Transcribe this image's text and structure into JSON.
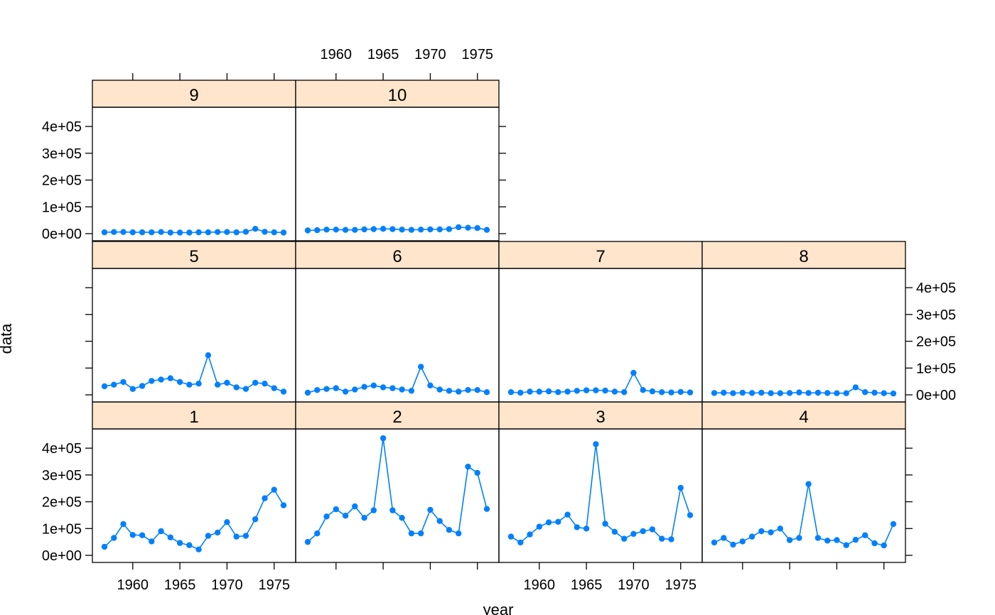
{
  "chart_data": {
    "type": "line",
    "layout": "trellis panels, 4 columns x 3 rows, bottom-to-top",
    "xlabel": "year",
    "ylabel": "data",
    "xlim": [
      1957,
      1976
    ],
    "ylim": [
      0,
      440000
    ],
    "xticks": [
      1960,
      1965,
      1970,
      1975
    ],
    "yticks": [
      0,
      100000,
      200000,
      300000,
      400000
    ],
    "ytick_labels": [
      "0e+00",
      "1e+05",
      "2e+05",
      "3e+05",
      "4e+05"
    ],
    "colors": {
      "series": "#0080ff",
      "strip": "#ffe5cc",
      "frame": "#000000"
    },
    "x": [
      1957,
      1958,
      1959,
      1960,
      1961,
      1962,
      1963,
      1964,
      1965,
      1966,
      1967,
      1968,
      1969,
      1970,
      1971,
      1972,
      1973,
      1974,
      1975,
      1976
    ],
    "panels": [
      {
        "label": "1",
        "values": [
          32000,
          65000,
          117000,
          76000,
          75000,
          52000,
          90000,
          67000,
          46000,
          38000,
          22000,
          73000,
          85000,
          124000,
          70000,
          73000,
          135000,
          213000,
          245000,
          187000
        ]
      },
      {
        "label": "2",
        "values": [
          50000,
          82000,
          145000,
          172000,
          148000,
          183000,
          140000,
          168000,
          437000,
          168000,
          140000,
          82000,
          82000,
          170000,
          128000,
          95000,
          82000,
          331000,
          308000,
          173000
        ]
      },
      {
        "label": "3",
        "values": [
          70000,
          48000,
          78000,
          107000,
          123000,
          125000,
          152000,
          105000,
          100000,
          415000,
          118000,
          88000,
          62000,
          80000,
          90000,
          97000,
          62000,
          60000,
          252000,
          150000
        ]
      },
      {
        "label": "4",
        "values": [
          48000,
          65000,
          40000,
          52000,
          70000,
          90000,
          86000,
          100000,
          57000,
          65000,
          266000,
          65000,
          55000,
          57000,
          38000,
          58000,
          75000,
          45000,
          37000,
          117000
        ]
      },
      {
        "label": "5",
        "values": [
          32000,
          38000,
          48000,
          22000,
          33000,
          52000,
          57000,
          62000,
          48000,
          38000,
          42000,
          148000,
          38000,
          45000,
          28000,
          22000,
          45000,
          42000,
          25000,
          12000
        ]
      },
      {
        "label": "6",
        "values": [
          8000,
          18000,
          22000,
          25000,
          12000,
          20000,
          30000,
          35000,
          28000,
          25000,
          20000,
          15000,
          105000,
          35000,
          20000,
          15000,
          12000,
          18000,
          18000,
          10000
        ]
      },
      {
        "label": "7",
        "values": [
          10000,
          8000,
          12000,
          12000,
          13000,
          10000,
          12000,
          15000,
          17000,
          17000,
          16000,
          12000,
          10000,
          82000,
          18000,
          13000,
          10000,
          9000,
          11000,
          9000
        ]
      },
      {
        "label": "8",
        "values": [
          7000,
          8000,
          6000,
          8000,
          7000,
          8000,
          6000,
          6000,
          7000,
          9000,
          7000,
          8000,
          7000,
          6000,
          6000,
          28000,
          10000,
          8000,
          6000,
          5000
        ]
      },
      {
        "label": "9",
        "values": [
          5000,
          6000,
          6000,
          5000,
          5000,
          5000,
          6000,
          4000,
          4000,
          4000,
          5000,
          5000,
          6000,
          6000,
          5000,
          7000,
          18000,
          7000,
          5000,
          4000
        ]
      },
      {
        "label": "10",
        "values": [
          12000,
          13000,
          15000,
          15000,
          14000,
          14000,
          16000,
          17000,
          18000,
          17000,
          15000,
          14000,
          15000,
          16000,
          16000,
          17000,
          24000,
          22000,
          21000,
          14000
        ]
      }
    ]
  }
}
